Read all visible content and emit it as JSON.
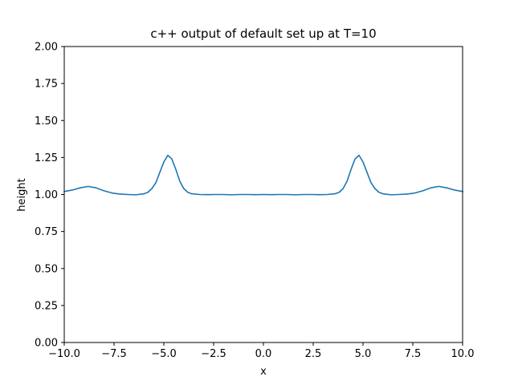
{
  "chart_data": {
    "type": "line",
    "title": "c++ output of default set up at T=10",
    "xlabel": "x",
    "ylabel": "height",
    "xlim": [
      -10,
      10
    ],
    "ylim": [
      0,
      2
    ],
    "xticks": [
      -10,
      -7.5,
      -5,
      -2.5,
      0,
      2.5,
      5,
      7.5,
      10
    ],
    "xtick_labels": [
      "−10.0",
      "−7.5",
      "−5.0",
      "−2.5",
      "0.0",
      "2.5",
      "5.0",
      "7.5",
      "10.0"
    ],
    "yticks": [
      0,
      0.25,
      0.5,
      0.75,
      1,
      1.25,
      1.5,
      1.75,
      2
    ],
    "ytick_labels": [
      "0.00",
      "0.25",
      "0.50",
      "0.75",
      "1.00",
      "1.25",
      "1.50",
      "1.75",
      "2.00"
    ],
    "grid": false,
    "series": [
      {
        "color": "#1f77b4",
        "x": [
          -10,
          -9.6,
          -9.2,
          -8.8,
          -8.4,
          -8.0,
          -7.6,
          -7.2,
          -6.8,
          -6.4,
          -6.0,
          -5.8,
          -5.6,
          -5.4,
          -5.2,
          -5.0,
          -4.8,
          -4.6,
          -4.4,
          -4.2,
          -4.0,
          -3.8,
          -3.6,
          -3.2,
          -2.8,
          -2.4,
          -2.0,
          -1.6,
          -1.2,
          -0.8,
          -0.4,
          0.0,
          0.4,
          0.8,
          1.2,
          1.6,
          2.0,
          2.4,
          2.8,
          3.2,
          3.6,
          3.8,
          4.0,
          4.2,
          4.4,
          4.6,
          4.8,
          5.0,
          5.2,
          5.4,
          5.6,
          5.8,
          6.0,
          6.4,
          6.8,
          7.2,
          7.6,
          8.0,
          8.4,
          8.8,
          9.2,
          9.6,
          10.0
        ],
        "y": [
          1.02,
          1.03,
          1.045,
          1.055,
          1.045,
          1.025,
          1.01,
          1.003,
          1.0,
          0.998,
          1.005,
          1.015,
          1.04,
          1.08,
          1.15,
          1.22,
          1.265,
          1.24,
          1.17,
          1.09,
          1.04,
          1.015,
          1.005,
          1.0,
          0.999,
          1.0,
          1.0,
          0.998,
          1.0,
          1.0,
          0.999,
          1.0,
          0.999,
          1.0,
          1.0,
          0.998,
          1.0,
          1.0,
          0.999,
          1.0,
          1.005,
          1.015,
          1.04,
          1.09,
          1.17,
          1.24,
          1.265,
          1.22,
          1.15,
          1.08,
          1.04,
          1.015,
          1.005,
          0.998,
          1.0,
          1.003,
          1.01,
          1.025,
          1.045,
          1.055,
          1.045,
          1.03,
          1.02
        ]
      }
    ]
  }
}
